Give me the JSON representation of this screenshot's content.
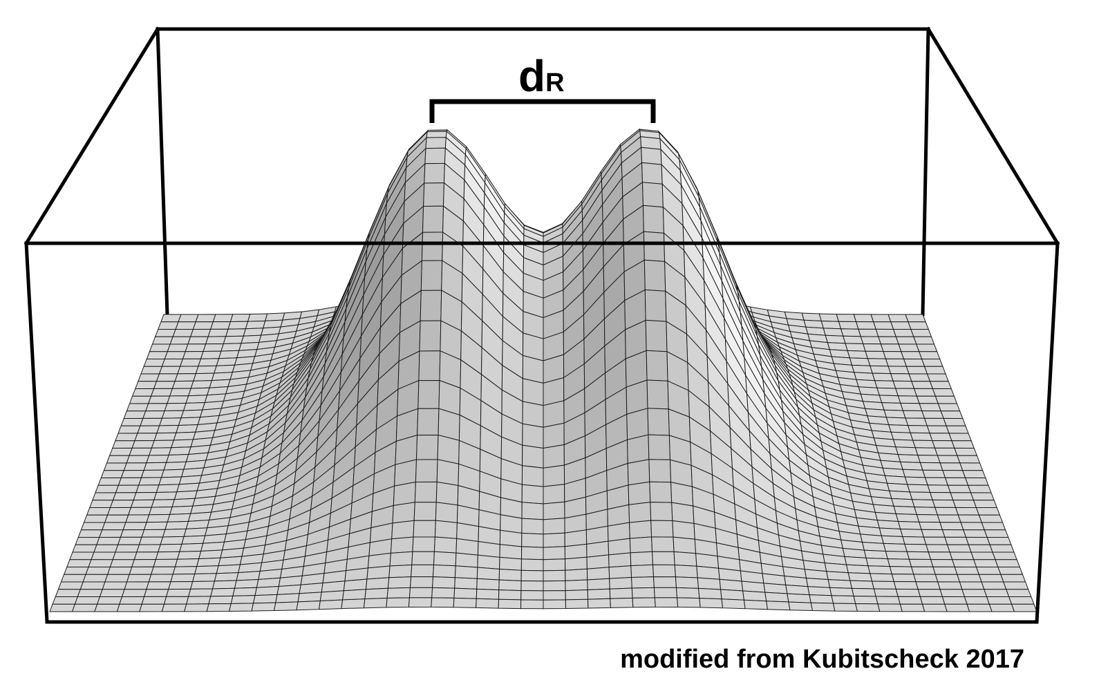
{
  "label": {
    "main": "d",
    "sub": "R"
  },
  "credit": "modified from Kubitscheck 2017"
}
